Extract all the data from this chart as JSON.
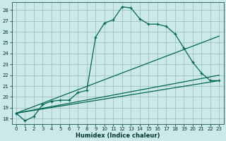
{
  "xlabel": "Humidex (Indice chaleur)",
  "bg_color": "#cce9e9",
  "grid_color": "#99bbbb",
  "line_color": "#006655",
  "xlim": [
    -0.5,
    23.5
  ],
  "ylim": [
    17.5,
    28.7
  ],
  "xticks": [
    0,
    1,
    2,
    3,
    4,
    5,
    6,
    7,
    8,
    9,
    10,
    11,
    12,
    13,
    14,
    15,
    16,
    17,
    18,
    19,
    20,
    21,
    22,
    23
  ],
  "yticks": [
    18,
    19,
    20,
    21,
    22,
    23,
    24,
    25,
    26,
    27,
    28
  ],
  "main_x": [
    0,
    1,
    2,
    3,
    4,
    5,
    6,
    7,
    8,
    9,
    10,
    11,
    12,
    13,
    14,
    15,
    16,
    17,
    18,
    19,
    20,
    21,
    22,
    23
  ],
  "main_y": [
    18.5,
    17.8,
    18.2,
    19.3,
    19.6,
    19.7,
    19.7,
    20.4,
    20.6,
    25.5,
    26.8,
    27.1,
    28.3,
    28.2,
    27.2,
    26.7,
    26.7,
    26.5,
    25.8,
    24.5,
    23.2,
    22.2,
    21.5,
    21.5
  ],
  "diag_lines": [
    {
      "x0": 0,
      "y0": 18.5,
      "x1": 23,
      "y1": 21.5
    },
    {
      "x0": 0,
      "y0": 18.5,
      "x1": 23,
      "y1": 22.0
    },
    {
      "x0": 0,
      "y0": 18.5,
      "x1": 23,
      "y1": 25.6
    }
  ]
}
